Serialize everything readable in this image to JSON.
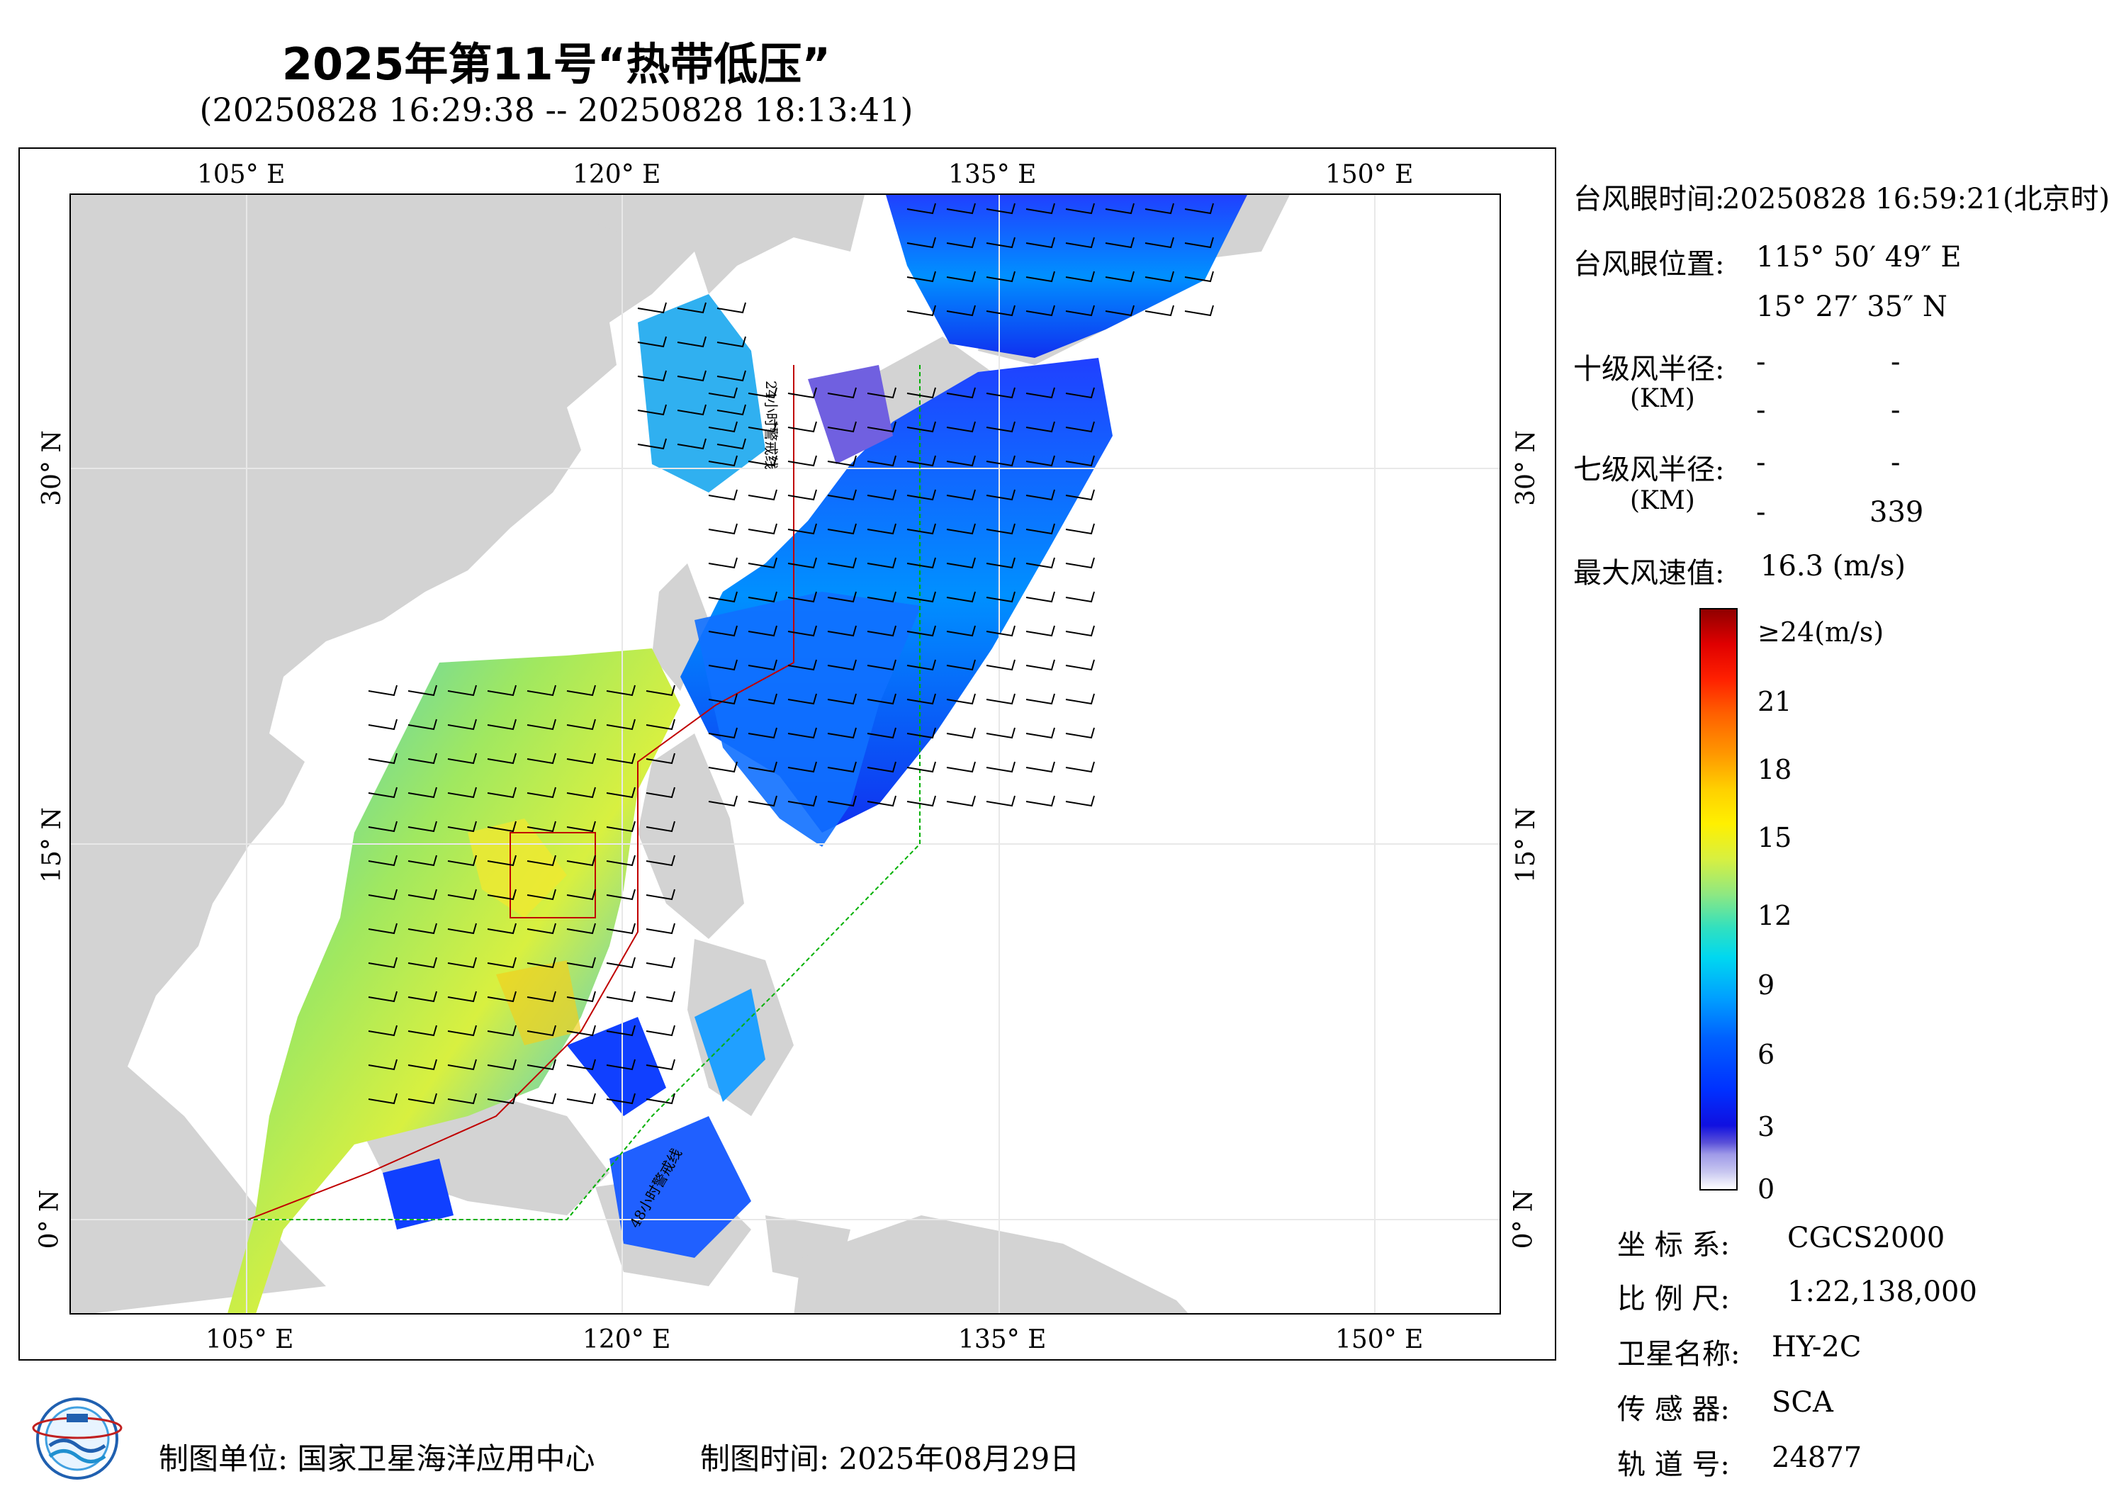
{
  "title": "2025年第11号“热带低压”",
  "subtitle": "(20250828 16:29:38 -- 20250828 18:13:41)",
  "map": {
    "lon_labels_top": [
      "105° E",
      "120° E",
      "135° E",
      "150° E"
    ],
    "lon_labels_bottom": [
      "105° E",
      "120° E",
      "135° E",
      "150° E"
    ],
    "lat_labels_left": [
      "30° N",
      "15° N",
      "0° N"
    ],
    "lat_labels_right": [
      "30° N",
      "15° N",
      "0° N"
    ],
    "annotation_24h": "24小时警戒线",
    "annotation_48h": "48小时警戒线",
    "colors": {
      "land": "#d3d3d3",
      "ocean": "#ffffff",
      "warning_24h": "#c00000",
      "warning_48h": "#00b000",
      "track": "#c00000"
    }
  },
  "info": {
    "eye_time_label": "台风眼时间:",
    "eye_time_value": "20250828 16:59:21(北京时)",
    "eye_pos_label": "台风眼位置:",
    "eye_lon": "115° 50′ 49″ E",
    "eye_lat": "15° 27′ 35″ N",
    "r10_label": "十级风半径:",
    "r10_unit": "(KM)",
    "r10_a1": "-",
    "r10_a2": "-",
    "r10_b1": "-",
    "r10_b2": "-",
    "r7_label": "七级风半径:",
    "r7_unit": "(KM)",
    "r7_a1": "-",
    "r7_a2": "-",
    "r7_b1": "-",
    "r7_b2": "339",
    "maxwind_label": "最大风速值:",
    "maxwind_value": "16.3 (m/s)"
  },
  "colorbar": {
    "ticks": [
      "≥24(m/s)",
      "21",
      "18",
      "15",
      "12",
      "9",
      "6",
      "3",
      "0"
    ]
  },
  "meta": {
    "crs_label": "坐 标 系:",
    "crs_value": "CGCS2000",
    "scale_label": "比 例 尺:",
    "scale_value": "1:22,138,000",
    "sat_label": "卫星名称:",
    "sat_value": "HY-2C",
    "sensor_label": "传 感 器:",
    "sensor_value": "SCA",
    "orbit_label": "轨 道 号:",
    "orbit_value": "24877"
  },
  "footer": {
    "producer": "制图单位: 国家卫星海洋应用中心",
    "time": "制图时间:  2025年08月29日"
  }
}
